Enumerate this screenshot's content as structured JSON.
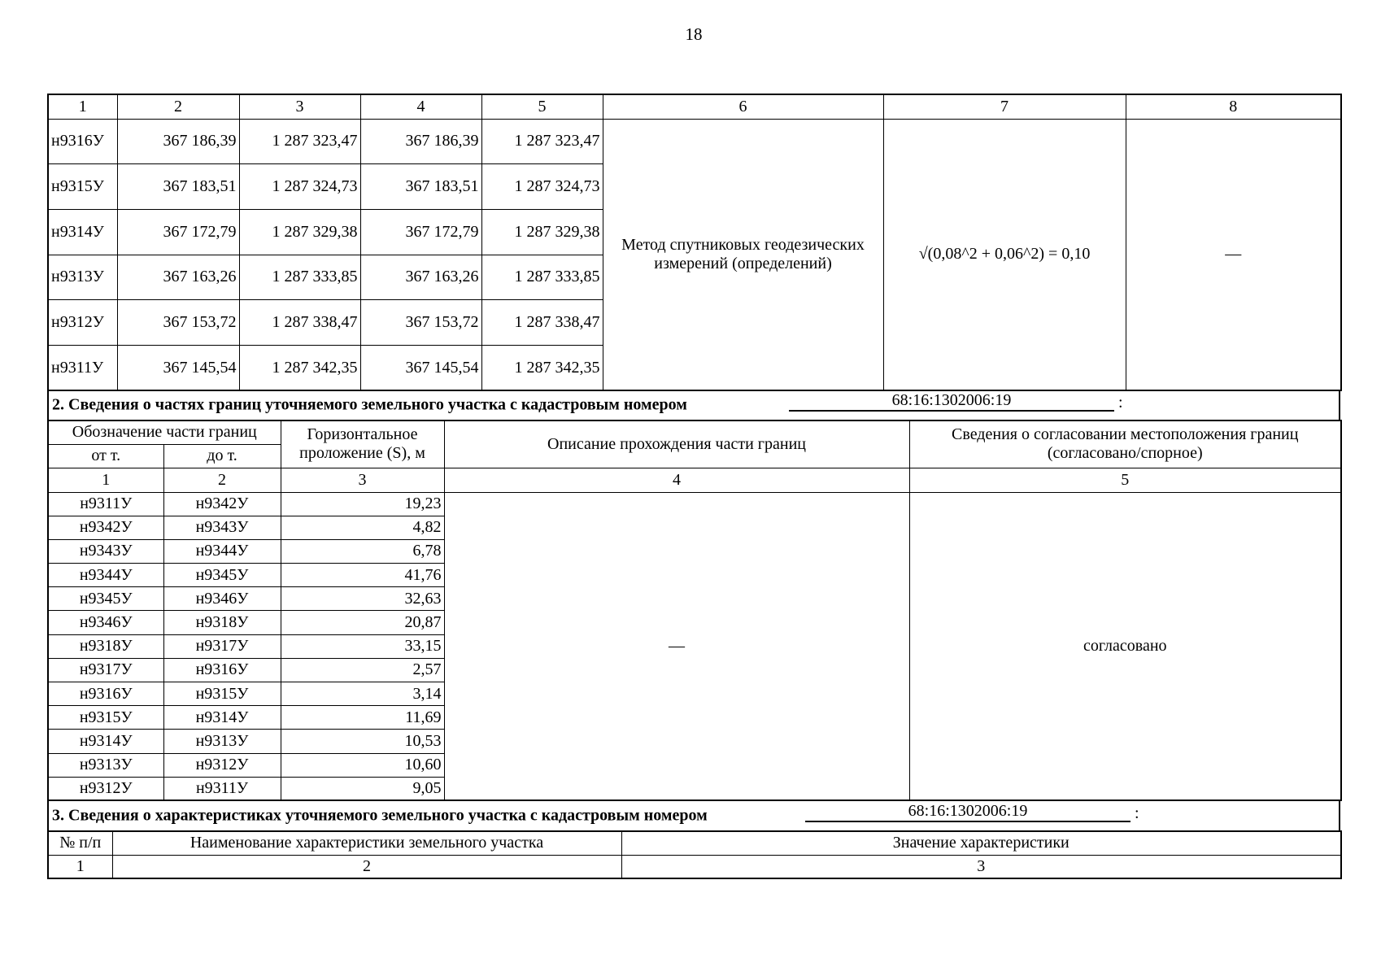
{
  "page_number": "18",
  "table1": {
    "header": [
      "1",
      "2",
      "3",
      "4",
      "5",
      "6",
      "7",
      "8"
    ],
    "rows": [
      [
        "н9316У",
        "367 186,39",
        "1 287 323,47",
        "367 186,39",
        "1 287 323,47"
      ],
      [
        "н9315У",
        "367 183,51",
        "1 287 324,73",
        "367 183,51",
        "1 287 324,73"
      ],
      [
        "н9314У",
        "367 172,79",
        "1 287 329,38",
        "367 172,79",
        "1 287 329,38"
      ],
      [
        "н9313У",
        "367 163,26",
        "1 287 333,85",
        "367 163,26",
        "1 287 333,85"
      ],
      [
        "н9312У",
        "367 153,72",
        "1 287 338,47",
        "367 153,72",
        "1 287 338,47"
      ],
      [
        "н9311У",
        "367 145,54",
        "1 287 342,35",
        "367 145,54",
        "1 287 342,35"
      ]
    ],
    "method": "Метод спутниковых геодезических измерений (определений)",
    "accuracy": "√(0,08^2 + 0,06^2) = 0,10",
    "col8": "—"
  },
  "section2": {
    "title": "2. Сведения о частях границ уточняемого земельного участка с кадастровым номером",
    "cadastral_number": "68:16:1302006:19",
    "colon": ":",
    "headers": {
      "part_designation": "Обозначение части границ",
      "from": "от т.",
      "to": "до т.",
      "horizontal": "Горизонтальное проложение (S), м",
      "description": "Описание прохождения части границ",
      "agreement": "Сведения о согласовании местоположения границ (согласовано/спорное)"
    },
    "numbers": [
      "1",
      "2",
      "3",
      "4",
      "5"
    ],
    "rows": [
      [
        "н9311У",
        "н9342У",
        "19,23"
      ],
      [
        "н9342У",
        "н9343У",
        "4,82"
      ],
      [
        "н9343У",
        "н9344У",
        "6,78"
      ],
      [
        "н9344У",
        "н9345У",
        "41,76"
      ],
      [
        "н9345У",
        "н9346У",
        "32,63"
      ],
      [
        "н9346У",
        "н9318У",
        "20,87"
      ],
      [
        "н9318У",
        "н9317У",
        "33,15"
      ],
      [
        "н9317У",
        "н9316У",
        "2,57"
      ],
      [
        "н9316У",
        "н9315У",
        "3,14"
      ],
      [
        "н9315У",
        "н9314У",
        "11,69"
      ],
      [
        "н9314У",
        "н9313У",
        "10,53"
      ],
      [
        "н9313У",
        "н9312У",
        "10,60"
      ],
      [
        "н9312У",
        "н9311У",
        "9,05"
      ]
    ],
    "description_value": "—",
    "agreement_value": "согласовано"
  },
  "section3": {
    "title": "3. Сведения о характеристиках уточняемого земельного участка с кадастровым номером",
    "cadastral_number": "68:16:1302006:19",
    "colon": ":",
    "headers": [
      "№ п/п",
      "Наименование характеристики земельного участка",
      "Значение характеристики"
    ],
    "numbers": [
      "1",
      "2",
      "3"
    ]
  }
}
